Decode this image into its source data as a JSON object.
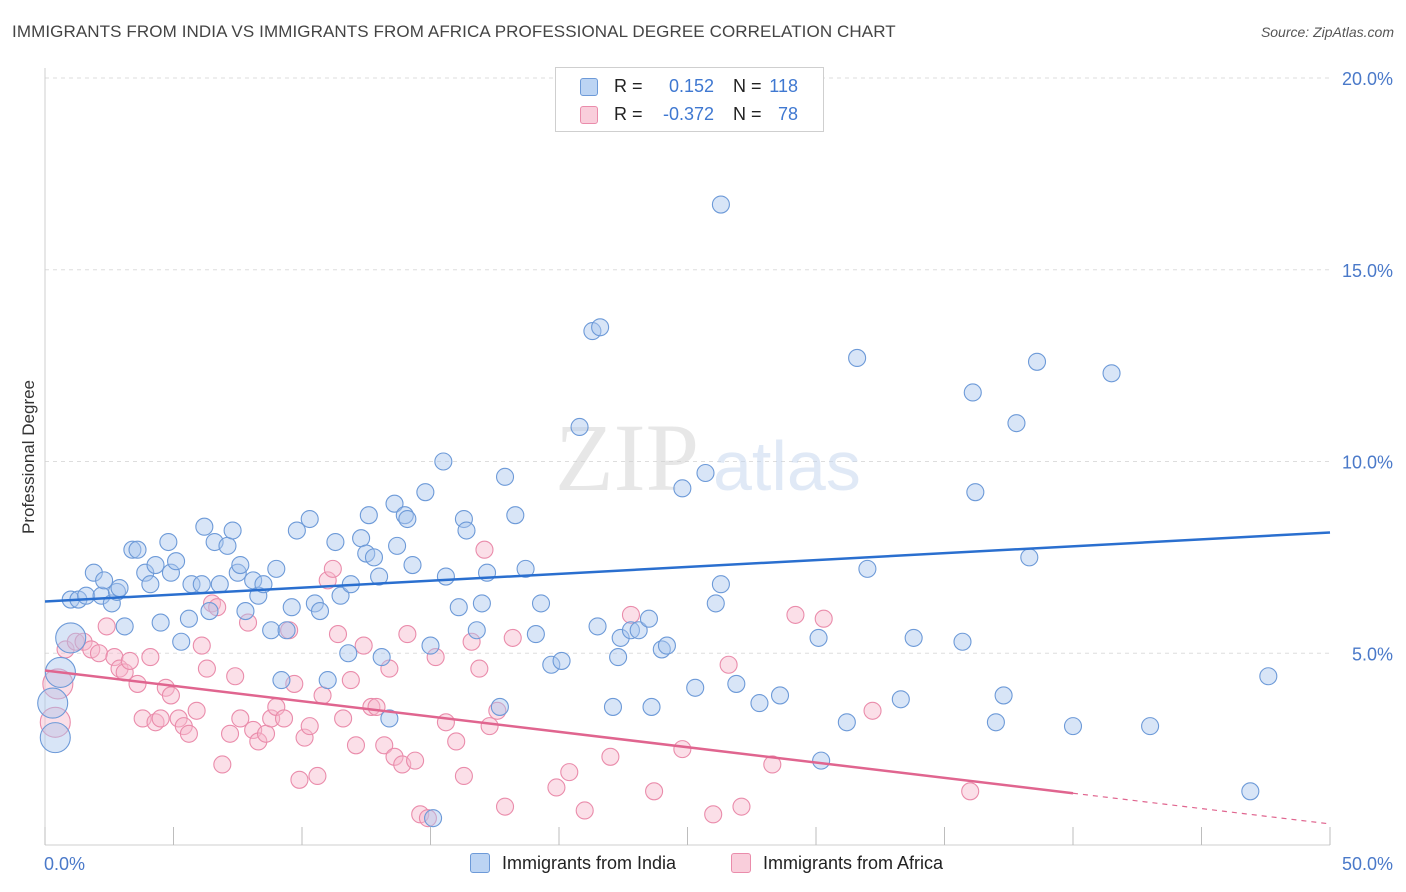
{
  "title": "IMMIGRANTS FROM INDIA VS IMMIGRANTS FROM AFRICA PROFESSIONAL DEGREE CORRELATION CHART",
  "source": "Source: ZipAtlas.com",
  "watermark": {
    "zip": "ZIP",
    "atlas": "atlas"
  },
  "legend": {
    "rows": [
      {
        "r_label": "R =",
        "r_value": "0.152",
        "n_label": "N =",
        "n_value": "118"
      },
      {
        "r_label": "R =",
        "r_value": "-0.372",
        "n_label": "N =",
        "n_value": "78"
      }
    ]
  },
  "colors": {
    "india_fill": "#a9c6ee",
    "india_stroke": "#6d9ad8",
    "india_line": "#2a6fcf",
    "africa_fill": "#f6b9cc",
    "africa_stroke": "#ea8cab",
    "africa_line": "#e0658f",
    "grid": "#dddddd",
    "tick_label": "#4a79c9"
  },
  "chart_data": {
    "type": "scatter",
    "title": "IMMIGRANTS FROM INDIA VS IMMIGRANTS FROM AFRICA PROFESSIONAL DEGREE CORRELATION CHART",
    "xlabel": "",
    "ylabel": "Professional Degree",
    "xlim": [
      0,
      50
    ],
    "ylim": [
      0,
      20
    ],
    "x_ticks": [
      "0.0%",
      "50.0%"
    ],
    "y_ticks": [
      "5.0%",
      "10.0%",
      "15.0%",
      "20.0%"
    ],
    "y_tick_values": [
      5,
      10,
      15,
      20
    ],
    "grid": "horizontal dashed",
    "legend_position": "top-center",
    "series": [
      {
        "name": "Immigrants from India",
        "R": 0.152,
        "N": 118,
        "trend": {
          "x": [
            0,
            50
          ],
          "y": [
            6.35,
            8.15
          ]
        },
        "points": [
          [
            1.0,
            6.4
          ],
          [
            1.3,
            6.4
          ],
          [
            1.6,
            6.5
          ],
          [
            1.9,
            7.1
          ],
          [
            2.2,
            6.5
          ],
          [
            2.3,
            6.9
          ],
          [
            2.6,
            6.3
          ],
          [
            2.8,
            6.6
          ],
          [
            2.9,
            6.7
          ],
          [
            3.1,
            5.7
          ],
          [
            3.4,
            7.7
          ],
          [
            3.6,
            7.7
          ],
          [
            3.9,
            7.1
          ],
          [
            4.1,
            6.8
          ],
          [
            4.3,
            7.3
          ],
          [
            4.5,
            5.8
          ],
          [
            4.8,
            7.9
          ],
          [
            4.9,
            7.1
          ],
          [
            5.1,
            7.4
          ],
          [
            5.3,
            5.3
          ],
          [
            5.6,
            5.9
          ],
          [
            5.7,
            6.8
          ],
          [
            6.1,
            6.8
          ],
          [
            6.2,
            8.3
          ],
          [
            6.4,
            6.1
          ],
          [
            6.6,
            7.9
          ],
          [
            6.8,
            6.8
          ],
          [
            7.1,
            7.8
          ],
          [
            7.3,
            8.2
          ],
          [
            7.5,
            7.1
          ],
          [
            7.6,
            7.3
          ],
          [
            7.8,
            6.1
          ],
          [
            8.1,
            6.9
          ],
          [
            8.3,
            6.5
          ],
          [
            8.5,
            6.8
          ],
          [
            8.8,
            5.6
          ],
          [
            9.0,
            7.2
          ],
          [
            9.2,
            4.3
          ],
          [
            9.4,
            5.6
          ],
          [
            9.6,
            6.2
          ],
          [
            9.8,
            8.2
          ],
          [
            10.3,
            8.5
          ],
          [
            10.5,
            6.3
          ],
          [
            10.7,
            6.1
          ],
          [
            11.0,
            4.3
          ],
          [
            11.3,
            7.9
          ],
          [
            11.5,
            6.5
          ],
          [
            11.8,
            5.0
          ],
          [
            11.9,
            6.8
          ],
          [
            12.3,
            8.0
          ],
          [
            12.5,
            7.6
          ],
          [
            12.6,
            8.6
          ],
          [
            12.8,
            7.5
          ],
          [
            13.0,
            7.0
          ],
          [
            13.1,
            4.9
          ],
          [
            13.4,
            3.3
          ],
          [
            13.6,
            8.9
          ],
          [
            13.7,
            7.8
          ],
          [
            14.0,
            8.6
          ],
          [
            14.1,
            8.5
          ],
          [
            14.3,
            7.3
          ],
          [
            14.8,
            9.2
          ],
          [
            15.0,
            5.2
          ],
          [
            15.1,
            0.7
          ],
          [
            15.5,
            10.0
          ],
          [
            15.6,
            7.0
          ],
          [
            16.1,
            6.2
          ],
          [
            16.3,
            8.5
          ],
          [
            16.4,
            8.2
          ],
          [
            16.8,
            5.6
          ],
          [
            17.0,
            6.3
          ],
          [
            17.2,
            7.1
          ],
          [
            17.7,
            3.6
          ],
          [
            17.9,
            9.6
          ],
          [
            18.3,
            8.6
          ],
          [
            18.7,
            7.2
          ],
          [
            19.1,
            5.5
          ],
          [
            19.3,
            6.3
          ],
          [
            19.7,
            4.7
          ],
          [
            20.1,
            4.8
          ],
          [
            20.8,
            10.9
          ],
          [
            21.3,
            13.4
          ],
          [
            21.5,
            5.7
          ],
          [
            21.6,
            13.5
          ],
          [
            22.1,
            3.6
          ],
          [
            22.3,
            4.9
          ],
          [
            22.4,
            5.4
          ],
          [
            22.8,
            5.6
          ],
          [
            23.1,
            5.6
          ],
          [
            23.5,
            5.9
          ],
          [
            24.0,
            5.1
          ],
          [
            23.6,
            3.6
          ],
          [
            24.2,
            5.2
          ],
          [
            24.8,
            9.3
          ],
          [
            25.3,
            4.1
          ],
          [
            25.7,
            9.7
          ],
          [
            26.1,
            6.3
          ],
          [
            26.3,
            6.8
          ],
          [
            26.9,
            4.2
          ],
          [
            26.3,
            16.7
          ],
          [
            27.8,
            3.7
          ],
          [
            28.6,
            3.9
          ],
          [
            30.1,
            5.4
          ],
          [
            30.2,
            2.2
          ],
          [
            31.2,
            3.2
          ],
          [
            31.6,
            12.7
          ],
          [
            32.0,
            7.2
          ],
          [
            33.3,
            3.8
          ],
          [
            33.8,
            5.4
          ],
          [
            35.7,
            5.3
          ],
          [
            36.1,
            11.8
          ],
          [
            36.2,
            9.2
          ],
          [
            37.0,
            3.2
          ],
          [
            37.3,
            3.9
          ],
          [
            37.8,
            11.0
          ],
          [
            38.3,
            7.5
          ],
          [
            38.6,
            12.6
          ],
          [
            40.0,
            3.1
          ],
          [
            41.5,
            12.3
          ],
          [
            43.0,
            3.1
          ],
          [
            47.6,
            4.4
          ],
          [
            46.9,
            1.4
          ]
        ],
        "large_points": [
          [
            0.3,
            3.7
          ],
          [
            0.4,
            2.8
          ],
          [
            0.6,
            4.5
          ],
          [
            1.0,
            5.4
          ]
        ]
      },
      {
        "name": "Immigrants from Africa",
        "R": -0.372,
        "N": 78,
        "trend": {
          "x": [
            0,
            40
          ],
          "y": [
            4.55,
            1.35
          ]
        },
        "trend_dashed": {
          "x": [
            40,
            50
          ],
          "y": [
            1.35,
            0.55
          ]
        },
        "points": [
          [
            0.8,
            5.1
          ],
          [
            1.2,
            5.3
          ],
          [
            1.5,
            5.3
          ],
          [
            1.8,
            5.1
          ],
          [
            2.1,
            5.0
          ],
          [
            2.4,
            5.7
          ],
          [
            2.7,
            4.9
          ],
          [
            2.9,
            4.6
          ],
          [
            3.1,
            4.5
          ],
          [
            3.3,
            4.8
          ],
          [
            3.6,
            4.2
          ],
          [
            3.8,
            3.3
          ],
          [
            4.1,
            4.9
          ],
          [
            4.3,
            3.2
          ],
          [
            4.5,
            3.3
          ],
          [
            4.7,
            4.1
          ],
          [
            4.9,
            3.9
          ],
          [
            5.2,
            3.3
          ],
          [
            5.4,
            3.1
          ],
          [
            5.6,
            2.9
          ],
          [
            5.9,
            3.5
          ],
          [
            6.1,
            5.2
          ],
          [
            6.3,
            4.6
          ],
          [
            6.5,
            6.3
          ],
          [
            6.7,
            6.2
          ],
          [
            6.9,
            2.1
          ],
          [
            7.2,
            2.9
          ],
          [
            7.4,
            4.4
          ],
          [
            7.6,
            3.3
          ],
          [
            7.9,
            5.8
          ],
          [
            8.1,
            3.0
          ],
          [
            8.3,
            2.7
          ],
          [
            8.6,
            2.9
          ],
          [
            8.8,
            3.3
          ],
          [
            9.0,
            3.6
          ],
          [
            9.3,
            3.3
          ],
          [
            9.5,
            5.6
          ],
          [
            9.7,
            4.2
          ],
          [
            9.9,
            1.7
          ],
          [
            10.1,
            2.8
          ],
          [
            10.3,
            3.1
          ],
          [
            10.6,
            1.8
          ],
          [
            10.8,
            3.9
          ],
          [
            11.0,
            6.9
          ],
          [
            11.2,
            7.2
          ],
          [
            11.4,
            5.5
          ],
          [
            11.6,
            3.3
          ],
          [
            11.9,
            4.3
          ],
          [
            12.1,
            2.6
          ],
          [
            12.4,
            5.2
          ],
          [
            12.7,
            3.6
          ],
          [
            12.9,
            3.6
          ],
          [
            13.2,
            2.6
          ],
          [
            13.4,
            4.6
          ],
          [
            13.6,
            2.3
          ],
          [
            13.9,
            2.1
          ],
          [
            14.1,
            5.5
          ],
          [
            14.4,
            2.2
          ],
          [
            14.6,
            0.8
          ],
          [
            14.9,
            0.7
          ],
          [
            15.2,
            4.9
          ],
          [
            15.6,
            3.2
          ],
          [
            16.0,
            2.7
          ],
          [
            16.3,
            1.8
          ],
          [
            16.6,
            5.3
          ],
          [
            16.9,
            4.6
          ],
          [
            17.1,
            7.7
          ],
          [
            17.3,
            3.1
          ],
          [
            17.6,
            3.5
          ],
          [
            17.9,
            1.0
          ],
          [
            18.2,
            5.4
          ],
          [
            19.9,
            1.5
          ],
          [
            20.4,
            1.9
          ],
          [
            21.0,
            0.9
          ],
          [
            22.0,
            2.3
          ],
          [
            22.8,
            6.0
          ],
          [
            23.7,
            1.4
          ],
          [
            24.8,
            2.5
          ],
          [
            26.0,
            0.8
          ],
          [
            26.6,
            4.7
          ],
          [
            27.1,
            1.0
          ],
          [
            28.3,
            2.1
          ],
          [
            29.2,
            6.0
          ],
          [
            30.3,
            5.9
          ],
          [
            32.2,
            3.5
          ],
          [
            36.0,
            1.4
          ]
        ],
        "large_points": [
          [
            0.4,
            3.2
          ],
          [
            0.5,
            4.2
          ]
        ]
      }
    ]
  }
}
